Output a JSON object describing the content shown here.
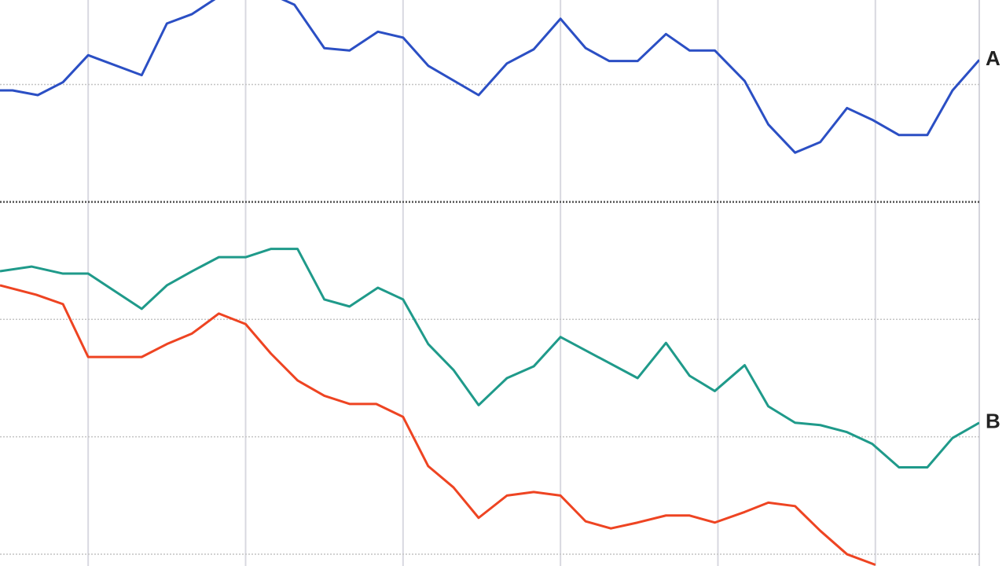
{
  "chart_data": {
    "type": "line",
    "xlim": [
      -0.56,
      5.66
    ],
    "xticks": [
      0,
      1,
      2,
      3,
      4,
      5
    ],
    "ylim": [
      -0.1,
      4.72
    ],
    "yticks": [
      0,
      1,
      2,
      4
    ],
    "panel_divider": 3,
    "grid": true,
    "series": [
      {
        "name": "A",
        "color": "#2b4fc4",
        "x": [
          -0.56,
          -0.48,
          -0.32,
          -0.16,
          0,
          0.34,
          0.5,
          0.66,
          0.83,
          1,
          1.16,
          1.31,
          1.5,
          1.66,
          1.84,
          2,
          2.16,
          2.48,
          2.66,
          2.83,
          3,
          3.16,
          3.31,
          3.49,
          3.67,
          3.82,
          3.98,
          4.17,
          4.32,
          4.49,
          4.65,
          4.82,
          4.98,
          5.15,
          5.33,
          5.49,
          5.66
        ],
        "values": [
          3.95,
          3.95,
          3.91,
          4.02,
          4.25,
          4.08,
          4.52,
          4.6,
          4.75,
          4.85,
          4.77,
          4.68,
          4.31,
          4.29,
          4.45,
          4.4,
          4.16,
          3.91,
          4.18,
          4.3,
          4.56,
          4.31,
          4.2,
          4.2,
          4.43,
          4.29,
          4.29,
          4.03,
          3.66,
          3.42,
          3.51,
          3.8,
          3.7,
          3.57,
          3.57,
          3.95,
          4.21
        ]
      },
      {
        "name": "B",
        "color": "#1f9a8a",
        "x": [
          -0.56,
          -0.36,
          -0.16,
          0,
          0.34,
          0.5,
          0.66,
          0.83,
          1,
          1.16,
          1.33,
          1.5,
          1.66,
          1.84,
          2,
          2.16,
          2.32,
          2.48,
          2.66,
          2.83,
          3,
          3.49,
          3.67,
          3.82,
          3.98,
          4.17,
          4.32,
          4.49,
          4.65,
          4.82,
          4.98,
          5.15,
          5.33,
          5.49,
          5.66
        ],
        "values": [
          2.41,
          2.45,
          2.39,
          2.39,
          2.09,
          2.29,
          2.41,
          2.53,
          2.53,
          2.6,
          2.6,
          2.17,
          2.11,
          2.27,
          2.17,
          1.79,
          1.57,
          1.27,
          1.5,
          1.6,
          1.85,
          1.5,
          1.8,
          1.52,
          1.39,
          1.61,
          1.26,
          1.12,
          1.1,
          1.04,
          0.94,
          0.74,
          0.74,
          0.99,
          1.12
        ]
      },
      {
        "color": "#ee4422",
        "x": [
          -0.56,
          -0.33,
          -0.16,
          0,
          0.34,
          0.5,
          0.66,
          0.83,
          1,
          1.16,
          1.33,
          1.5,
          1.66,
          1.83,
          2,
          2.16,
          2.32,
          2.48,
          2.66,
          2.83,
          3,
          3.16,
          3.32,
          3.49,
          3.67,
          3.82,
          3.98,
          4.17,
          4.32,
          4.49,
          4.65,
          4.82,
          5.0
        ],
        "values": [
          2.29,
          2.21,
          2.13,
          1.68,
          1.68,
          1.79,
          1.88,
          2.05,
          1.96,
          1.71,
          1.48,
          1.35,
          1.28,
          1.28,
          1.17,
          0.75,
          0.57,
          0.31,
          0.5,
          0.53,
          0.5,
          0.28,
          0.22,
          0.27,
          0.33,
          0.33,
          0.27,
          0.36,
          0.44,
          0.41,
          0.2,
          0,
          -0.09
        ]
      }
    ]
  }
}
